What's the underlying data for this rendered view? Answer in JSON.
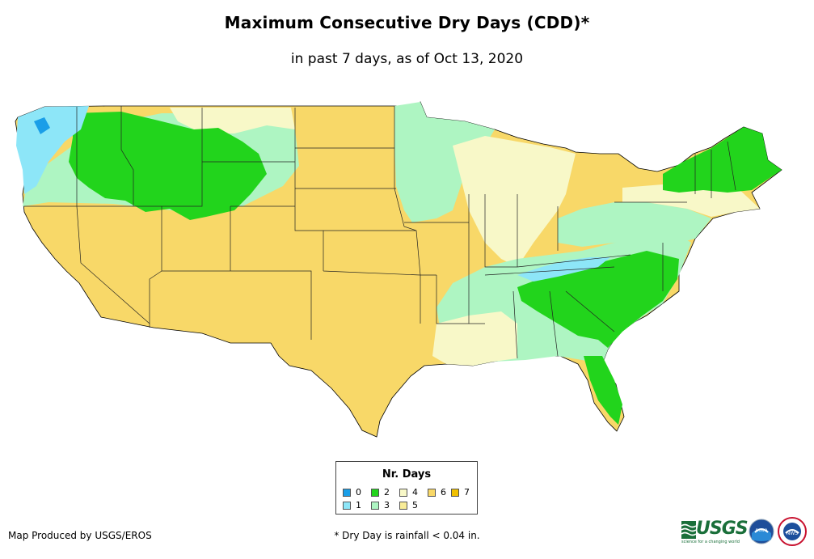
{
  "title": "Maximum Consecutive Dry Days (CDD)*",
  "subtitle": "in past 7 days, as of Oct 13, 2020",
  "legend": {
    "title": "Nr. Days",
    "items": [
      {
        "label": "0",
        "color": "#1a9ee8"
      },
      {
        "label": "1",
        "color": "#8de6f8"
      },
      {
        "label": "2",
        "color": "#22d41c"
      },
      {
        "label": "3",
        "color": "#aef5c2"
      },
      {
        "label": "4",
        "color": "#f8f8c8"
      },
      {
        "label": "5",
        "color": "#f8ec98"
      },
      {
        "label": "6",
        "color": "#f8d868"
      },
      {
        "label": "7",
        "color": "#f0c000"
      }
    ]
  },
  "credit": "Map Produced by USGS/EROS",
  "footnote": "* Dry Day is rainfall < 0.04 in.",
  "logos": {
    "usgs": "USGS",
    "usgs_tagline": "science for a changing world",
    "noaa": "noaa",
    "nws": "NWS"
  }
}
